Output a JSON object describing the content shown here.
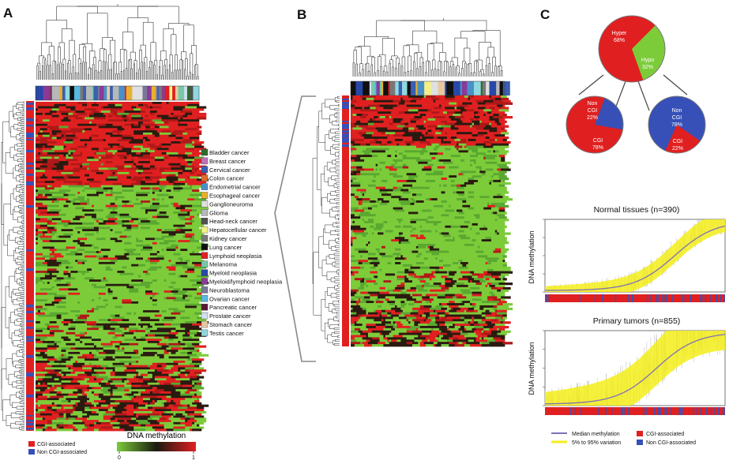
{
  "panels": {
    "a": "A",
    "b": "B",
    "c": "C"
  },
  "colors": {
    "red": "#e02020",
    "green": "#7ccc3a",
    "dark": "#2a1a10",
    "blue": "#3650b8",
    "yellow": "#f4ee1a",
    "median": "#8070b8"
  },
  "cancer_legend": [
    {
      "label": "Bladder cancer",
      "color": "#2d6b2d"
    },
    {
      "label": "Breast cancer",
      "color": "#c070b8"
    },
    {
      "label": "Cervical cancer",
      "color": "#3a5fb0"
    },
    {
      "label": "Colon cancer",
      "color": "#e06b2a"
    },
    {
      "label": "Endometrial cancer",
      "color": "#4a90c8"
    },
    {
      "label": "Esophageal cancer",
      "color": "#e8b030"
    },
    {
      "label": "Ganglioneuroma",
      "color": "#e0e0e0"
    },
    {
      "label": "Glioma",
      "color": "#b8b8b8"
    },
    {
      "label": "Head-neck cancer",
      "color": "#505050"
    },
    {
      "label": "Hepatocellular cancer",
      "color": "#f4f088"
    },
    {
      "label": "Kidney cancer",
      "color": "#787878"
    },
    {
      "label": "Lung cancer",
      "color": "#101010"
    },
    {
      "label": "Lymphoid neoplasia",
      "color": "#e02020"
    },
    {
      "label": "Melanoma",
      "color": "#78c8a8"
    },
    {
      "label": "Myeloid neoplasia",
      "color": "#2848a8"
    },
    {
      "label": "Myeloid/lymphoid neoplasia",
      "color": "#8a3a98"
    },
    {
      "label": "Neuroblastoma",
      "color": "#787898"
    },
    {
      "label": "Ovarian cancer",
      "color": "#58b8e0"
    },
    {
      "label": "Pancreatic cancer",
      "color": "#5a1838"
    },
    {
      "label": "Prostate cancer",
      "color": "#d0e0f0"
    },
    {
      "label": "Stomach cancer",
      "color": "#e8c8a0"
    },
    {
      "label": "Testis cancer",
      "color": "#90d8e0"
    }
  ],
  "cgi_legend": {
    "cgi": "CGI-associated",
    "non_cgi": "Non CGI-associated"
  },
  "colorbar": {
    "title": "DNA methylation",
    "min": "0",
    "max": "1"
  },
  "pies": {
    "main": {
      "hyper_label": "Hyper",
      "hyper_value": "68%",
      "hypo_label": "Hypo",
      "hypo_value": "32%",
      "hyper_fraction": 0.68
    },
    "left": {
      "non_label": "Non",
      "non_label2": "CGI",
      "non_value": "22%",
      "cgi_label": "CGI",
      "cgi_value": "78%",
      "cgi_fraction": 0.78
    },
    "right": {
      "non_label": "Non",
      "non_label2": "CGI",
      "non_value": "78%",
      "cgi_label": "CGI",
      "cgi_value": "22%",
      "cgi_fraction": 0.22
    }
  },
  "normal_plot": {
    "title": "Normal tissues (n=390)",
    "ylabel": "DNA methylation"
  },
  "tumor_plot": {
    "title": "Primary tumors (n=855)",
    "ylabel": "DNA methylation"
  },
  "bottom_legend": {
    "median": "Median methylation",
    "variation": "5% to 95% variation",
    "cgi": "CGI-associated",
    "non_cgi": "Non CGI-associated"
  }
}
